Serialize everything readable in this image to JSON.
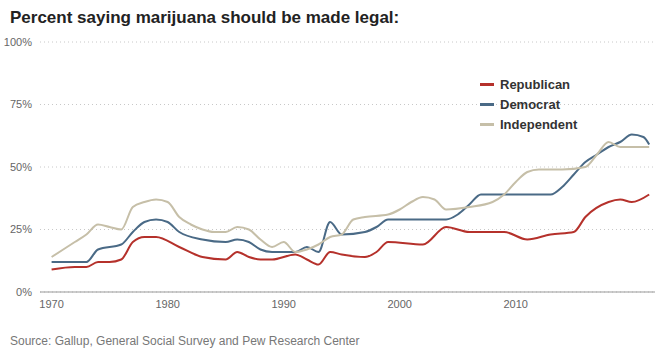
{
  "chart_data": {
    "type": "line",
    "title": "Percent saying marijuana should be made legal:",
    "source": "Source: Gallup, General Social Survey and Pew Research Center",
    "xlim": [
      1969,
      2022
    ],
    "xticks": [
      1970,
      1980,
      1990,
      2000,
      2010
    ],
    "ylim": [
      0,
      100
    ],
    "yticks": [
      {
        "value": 0,
        "label": "0%"
      },
      {
        "value": 25,
        "label": "25%"
      },
      {
        "value": 50,
        "label": "50%"
      },
      {
        "value": 75,
        "label": "75%"
      },
      {
        "value": 100,
        "label": "100%"
      }
    ],
    "grid": true,
    "legend": "top-right",
    "series": [
      {
        "name": "Republican",
        "color": "#b5312b",
        "x": [
          1970,
          1972,
          1973,
          1974,
          1975,
          1976,
          1977,
          1978,
          1979,
          1981,
          1983,
          1985,
          1986,
          1987,
          1988,
          1989,
          1991,
          1992,
          1993,
          1994,
          1995,
          1997,
          1998,
          1999,
          2002,
          2004,
          2006,
          2009,
          2011,
          2013,
          2015,
          2016,
          2018,
          2019,
          2020,
          2021.5
        ],
        "values": [
          9,
          10,
          10,
          12,
          12,
          13,
          20,
          22,
          22,
          18,
          14,
          13,
          16,
          14,
          13,
          13,
          15,
          13,
          11,
          16,
          15,
          14,
          16,
          20,
          19,
          26,
          24,
          24,
          21,
          23,
          24,
          30,
          36,
          37,
          36,
          39
        ]
      },
      {
        "name": "Democrat",
        "color": "#4a6a86",
        "x": [
          1970,
          1973,
          1974,
          1976,
          1977,
          1978,
          1979,
          1980,
          1981,
          1983,
          1985,
          1986,
          1987,
          1988,
          1989,
          1991,
          1992,
          1993,
          1994,
          1995,
          1997,
          1998,
          1999,
          2000,
          2004,
          2005,
          2006,
          2007,
          2013,
          2014,
          2015,
          2016,
          2017,
          2018,
          2019,
          2020,
          2021,
          2021.5
        ],
        "values": [
          12,
          12,
          17,
          19,
          24,
          28,
          29,
          28,
          24,
          21,
          20,
          21,
          20,
          17,
          16,
          16,
          18,
          16,
          28,
          23,
          24,
          26,
          29,
          29,
          29,
          31,
          35,
          39,
          39,
          42,
          47,
          52,
          55,
          58,
          60,
          63,
          62,
          59
        ]
      },
      {
        "name": "Independent",
        "color": "#c6bfa8",
        "x": [
          1970,
          1972,
          1973,
          1974,
          1975,
          1976,
          1977,
          1978,
          1979,
          1980,
          1981,
          1982,
          1983,
          1984,
          1985,
          1986,
          1987,
          1988,
          1989,
          1990,
          1991,
          1992,
          1993,
          1994,
          1995,
          1996,
          1997,
          1999,
          2000,
          2001,
          2002,
          2003,
          2004,
          2006,
          2008,
          2009,
          2010,
          2011,
          2012,
          2014,
          2016,
          2017,
          2018,
          2019,
          2021.5
        ],
        "values": [
          14,
          20,
          23,
          27,
          26,
          25,
          34,
          36,
          37,
          36,
          30,
          27,
          25,
          24,
          24,
          26,
          25,
          21,
          18,
          20,
          16,
          17,
          19,
          22,
          23,
          29,
          30,
          31,
          33,
          36,
          38,
          37,
          33,
          34,
          36,
          39,
          44,
          48,
          49,
          49,
          50,
          55,
          60,
          58,
          58
        ]
      }
    ]
  }
}
